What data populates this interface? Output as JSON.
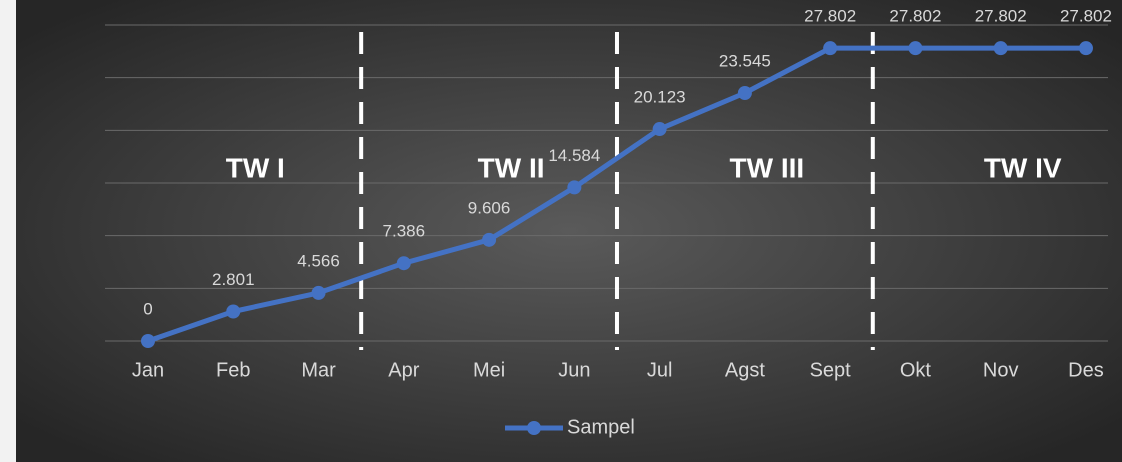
{
  "chart_data": {
    "type": "line",
    "categories": [
      "Jan",
      "Feb",
      "Mar",
      "Apr",
      "Mei",
      "Jun",
      "Jul",
      "Agst",
      "Sept",
      "Okt",
      "Nov",
      "Des"
    ],
    "series": [
      {
        "name": "Sampel",
        "color": "#4472c4",
        "values": [
          0,
          2.801,
          4.566,
          7.386,
          9.606,
          14.584,
          20.123,
          23.545,
          27.802,
          27.802,
          27.802,
          27.802
        ]
      }
    ],
    "ylim": [
      0,
      30
    ],
    "yticks": [
      0,
      5,
      10,
      15,
      20,
      25,
      30
    ],
    "grid": true,
    "periods": [
      "TW I",
      "TW II",
      "TW III",
      "TW IV"
    ],
    "legend": "bottom"
  }
}
